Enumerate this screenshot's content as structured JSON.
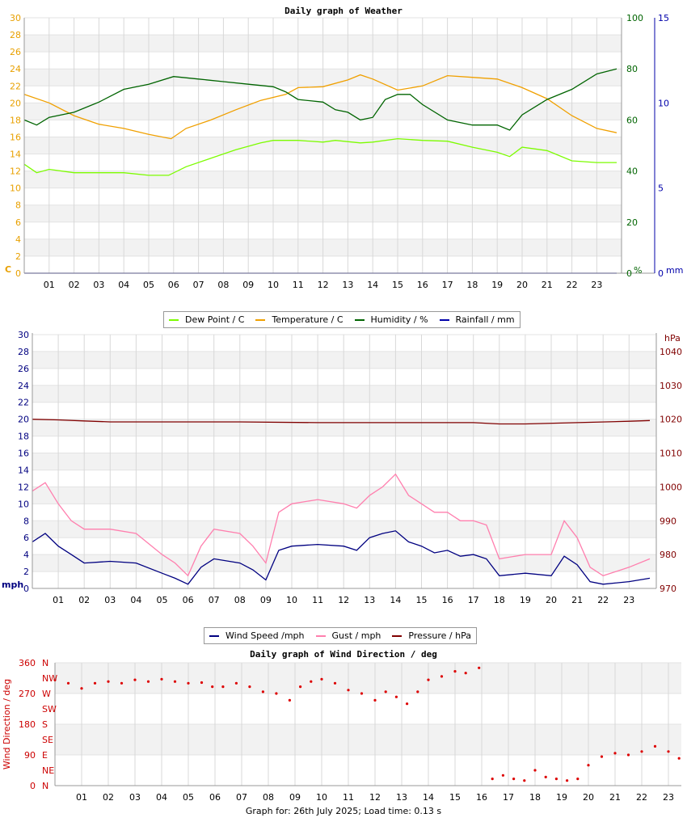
{
  "footer": "Graph for: 26th July 2025; Load time: 0.13 s",
  "chart_data": [
    {
      "type": "line",
      "title": "Daily graph of Weather",
      "x_ticks": [
        "01",
        "02",
        "03",
        "04",
        "05",
        "06",
        "07",
        "08",
        "09",
        "10",
        "11",
        "12",
        "13",
        "14",
        "15",
        "16",
        "17",
        "18",
        "19",
        "20",
        "21",
        "22",
        "23"
      ],
      "left_axis": {
        "unit": "C",
        "ticks": [
          0,
          2,
          4,
          6,
          8,
          10,
          12,
          14,
          16,
          18,
          20,
          22,
          24,
          26,
          28,
          30
        ],
        "ylim": [
          0,
          30
        ],
        "color": "#e8a000"
      },
      "right_axis_1": {
        "unit": "%",
        "ticks": [
          0,
          20,
          40,
          60,
          80,
          100
        ],
        "ylim": [
          0,
          100
        ],
        "color": "#006400"
      },
      "right_axis_2": {
        "unit": "mm",
        "ticks": [
          0,
          5,
          10,
          15
        ],
        "ylim": [
          0,
          15
        ],
        "color": "#0000aa"
      },
      "grid": true,
      "legend_position": "bottom",
      "series": [
        {
          "name": "Dew Point / C",
          "axis": "left",
          "color": "#7cfc00",
          "x": [
            0,
            0.5,
            1,
            2,
            3,
            4,
            5,
            5.8,
            6.5,
            7.5,
            8.5,
            9.5,
            10,
            11,
            12,
            12.5,
            13.5,
            14,
            15,
            16,
            17,
            18,
            19,
            19.5,
            20,
            21,
            22,
            23,
            23.8
          ],
          "y": [
            12.8,
            11.8,
            12.2,
            11.8,
            11.8,
            11.8,
            11.5,
            11.5,
            12.5,
            13.5,
            14.5,
            15.3,
            15.6,
            15.6,
            15.4,
            15.6,
            15.3,
            15.4,
            15.8,
            15.6,
            15.5,
            14.8,
            14.2,
            13.7,
            14.8,
            14.4,
            13.2,
            13.0,
            13.0
          ]
        },
        {
          "name": "Temperature / C",
          "axis": "left",
          "color": "#f0a000",
          "x": [
            0,
            1,
            2,
            3,
            4,
            5,
            5.9,
            6.5,
            7.5,
            8.5,
            9.5,
            10.5,
            11,
            12,
            13,
            13.5,
            14,
            15,
            16,
            17,
            18,
            19,
            20,
            21,
            22,
            23,
            23.8
          ],
          "y": [
            21.0,
            20.0,
            18.5,
            17.5,
            17.0,
            16.3,
            15.8,
            17.0,
            18.0,
            19.2,
            20.3,
            21.0,
            21.8,
            21.9,
            22.7,
            23.3,
            22.8,
            21.5,
            22.0,
            23.2,
            23.0,
            22.8,
            21.8,
            20.5,
            18.5,
            17.0,
            16.5
          ]
        },
        {
          "name": "Humidity / %",
          "axis": "right_1",
          "color": "#006400",
          "x": [
            0,
            0.5,
            1,
            2,
            3,
            4,
            5,
            6,
            7,
            8,
            9,
            10,
            10.5,
            11,
            12,
            12.5,
            13,
            13.5,
            14,
            14.5,
            15,
            15.5,
            16,
            17,
            18,
            19,
            19.5,
            20,
            21,
            22,
            23,
            23.8
          ],
          "y": [
            60,
            58,
            61,
            63,
            67,
            72,
            74,
            77,
            76,
            75,
            74,
            73,
            71,
            68,
            67,
            64,
            63,
            60,
            61,
            68,
            70,
            70,
            66,
            60,
            58,
            58,
            56,
            62,
            68,
            72,
            78,
            80
          ]
        },
        {
          "name": "Rainfall / mm",
          "axis": "right_2",
          "color": "#0000aa",
          "x": [
            0,
            23.8
          ],
          "y": [
            0,
            0
          ]
        }
      ]
    },
    {
      "type": "line",
      "title": "",
      "x_ticks": [
        "01",
        "02",
        "03",
        "04",
        "05",
        "06",
        "07",
        "08",
        "09",
        "10",
        "11",
        "12",
        "13",
        "14",
        "15",
        "16",
        "17",
        "18",
        "19",
        "20",
        "21",
        "22",
        "23"
      ],
      "left_axis": {
        "unit": "mph",
        "ticks": [
          0,
          2,
          4,
          6,
          8,
          10,
          12,
          14,
          16,
          18,
          20,
          22,
          24,
          26,
          28,
          30
        ],
        "ylim": [
          0,
          30
        ],
        "color": "#000080"
      },
      "right_axis": {
        "unit": "hPa",
        "ticks": [
          970,
          980,
          990,
          1000,
          1010,
          1020,
          1030,
          1040
        ],
        "ylim": [
          970,
          1045
        ],
        "color": "#800000"
      },
      "grid": true,
      "legend_position": "bottom",
      "series": [
        {
          "name": "Wind Speed /mph",
          "axis": "left",
          "color": "#000080",
          "x": [
            0,
            0.5,
            1,
            1.5,
            2,
            3,
            4,
            5,
            5.5,
            6,
            6.5,
            7,
            8,
            8.5,
            9,
            9.5,
            10,
            11,
            12,
            12.5,
            13,
            13.5,
            14,
            14.5,
            15,
            15.5,
            16,
            16.5,
            17,
            17.5,
            18,
            19,
            20,
            20.5,
            21,
            21.5,
            22,
            23,
            23.8
          ],
          "y": [
            5.5,
            6.5,
            5.0,
            4.0,
            3.0,
            3.2,
            3.0,
            1.8,
            1.2,
            0.5,
            2.5,
            3.5,
            3.0,
            2.2,
            1.0,
            4.5,
            5.0,
            5.2,
            5.0,
            4.5,
            6.0,
            6.5,
            6.8,
            5.5,
            5.0,
            4.2,
            4.5,
            3.8,
            4.0,
            3.5,
            1.5,
            1.8,
            1.5,
            3.8,
            2.8,
            0.8,
            0.5,
            0.8,
            1.2
          ]
        },
        {
          "name": "Gust / mph",
          "axis": "left",
          "color": "#ff7fae",
          "x": [
            0,
            0.5,
            1,
            1.5,
            2,
            3,
            4,
            5,
            5.5,
            6,
            6.5,
            7,
            8,
            8.5,
            9,
            9.5,
            10,
            11,
            12,
            12.5,
            13,
            13.5,
            14,
            14.5,
            15,
            15.5,
            16,
            16.5,
            17,
            17.5,
            18,
            19,
            20,
            20.5,
            21,
            21.5,
            22,
            23,
            23.8
          ],
          "y": [
            11.5,
            12.5,
            10.0,
            8.0,
            7.0,
            7.0,
            6.5,
            4.0,
            3.0,
            1.5,
            5.0,
            7.0,
            6.5,
            5.0,
            3.0,
            9.0,
            10.0,
            10.5,
            10.0,
            9.5,
            11.0,
            12.0,
            13.5,
            11.0,
            10.0,
            9.0,
            9.0,
            8.0,
            8.0,
            7.5,
            3.5,
            4.0,
            4.0,
            8.0,
            6.0,
            2.5,
            1.5,
            2.5,
            3.5
          ]
        },
        {
          "name": "Pressure / hPa",
          "axis": "right",
          "color": "#800000",
          "x": [
            0,
            1,
            2,
            3,
            5,
            8,
            11,
            14,
            17,
            18,
            19,
            21,
            23,
            23.8
          ],
          "y": [
            1020.0,
            1019.8,
            1019.5,
            1019.2,
            1019.2,
            1019.2,
            1019.0,
            1019.0,
            1019.0,
            1018.6,
            1018.6,
            1019.0,
            1019.4,
            1019.6
          ]
        }
      ]
    },
    {
      "type": "scatter",
      "title": "Daily graph of Wind Direction / deg",
      "ylabel": "Wind Direction / deg",
      "x_ticks": [
        "01",
        "02",
        "03",
        "04",
        "05",
        "06",
        "07",
        "08",
        "09",
        "10",
        "11",
        "12",
        "13",
        "14",
        "15",
        "16",
        "17",
        "18",
        "19",
        "20",
        "21",
        "22",
        "23"
      ],
      "left_axis": {
        "ticks": [
          0,
          90,
          180,
          270,
          360
        ],
        "ylim": [
          0,
          360
        ],
        "color": "#cc0000"
      },
      "compass_labels": [
        "N",
        "NE",
        "E",
        "SE",
        "S",
        "SW",
        "W",
        "NW",
        "N"
      ],
      "grid": true,
      "series": [
        {
          "name": "direction",
          "color": "#dd0000",
          "x": [
            0,
            0.5,
            1,
            1.5,
            2,
            2.5,
            3,
            3.5,
            4,
            4.5,
            5,
            5.5,
            5.9,
            6.3,
            6.8,
            7.3,
            7.8,
            8.3,
            8.8,
            9.2,
            9.6,
            10,
            10.5,
            11,
            11.5,
            12,
            12.4,
            12.8,
            13.2,
            13.6,
            14,
            14.5,
            15,
            15.4,
            15.9,
            16.4,
            16.8,
            17.2,
            17.6,
            18.0,
            18.4,
            18.8,
            19.2,
            19.6,
            20,
            20.5,
            21,
            21.5,
            22,
            22.5,
            23,
            23.4,
            23.8
          ],
          "y": [
            310,
            300,
            285,
            300,
            305,
            300,
            310,
            305,
            312,
            305,
            300,
            302,
            290,
            290,
            300,
            290,
            275,
            270,
            250,
            290,
            305,
            312,
            300,
            280,
            270,
            250,
            275,
            260,
            240,
            275,
            310,
            320,
            335,
            330,
            345,
            20,
            30,
            20,
            15,
            45,
            25,
            20,
            15,
            20,
            60,
            85,
            95,
            90,
            100,
            115,
            100,
            80,
            20
          ]
        }
      ]
    }
  ]
}
